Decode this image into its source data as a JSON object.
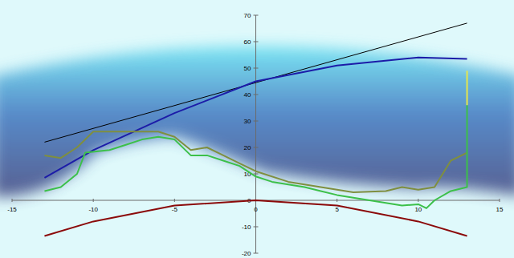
{
  "chart_data": {
    "type": "line",
    "xlim": [
      -15,
      15
    ],
    "ylim": [
      -20,
      70
    ],
    "xticks": [
      -15,
      -10,
      -5,
      0,
      5,
      10,
      15
    ],
    "yticks": [
      -20,
      -10,
      0,
      10,
      20,
      30,
      40,
      50,
      60,
      70
    ],
    "grid": false,
    "series": [
      {
        "color": "#000000",
        "x": [
          -13,
          13
        ],
        "values": [
          22,
          67
        ]
      },
      {
        "color": "#1c1ca8",
        "x": [
          -13,
          -10,
          -5,
          0,
          5,
          10,
          13
        ],
        "values": [
          8.5,
          19,
          33,
          45,
          51,
          54,
          53.5
        ]
      },
      {
        "color": "#8b0a0a",
        "x": [
          -13,
          -10,
          -5,
          0,
          5,
          10,
          13
        ],
        "values": [
          -13.5,
          -8,
          -2,
          0,
          -2,
          -8,
          -13.5
        ]
      },
      {
        "color": "#7f8f3f",
        "x": [
          -13,
          -12,
          -11,
          -10,
          -8,
          -6,
          -5,
          -4,
          -3,
          -2,
          -1,
          0,
          2,
          4,
          6,
          8,
          9,
          10,
          11,
          12,
          13
        ],
        "values": [
          17,
          16,
          20,
          26,
          26,
          26,
          24,
          19,
          20,
          17,
          14,
          11,
          7,
          5,
          3,
          3.5,
          5,
          4,
          5,
          15,
          18
        ]
      },
      {
        "color": "#3cc04a",
        "x": [
          -13,
          -12,
          -11,
          -10.5,
          -9,
          -8,
          -7,
          -6,
          -5,
          -4,
          -3,
          -2,
          -1,
          0,
          1,
          2,
          3,
          4,
          5,
          6,
          7,
          8,
          9,
          10,
          10.5,
          11,
          12,
          13,
          13
        ],
        "values": [
          3.5,
          5,
          10,
          18,
          19,
          21,
          23,
          24,
          23,
          17,
          17,
          15,
          13,
          9,
          7,
          6,
          5,
          3.5,
          2,
          1,
          0,
          -1,
          -2,
          -1.5,
          -3,
          0,
          3.5,
          5,
          36
        ]
      },
      {
        "color": "#e6e64a",
        "x": [
          13,
          13
        ],
        "values": [
          36,
          49
        ]
      }
    ]
  }
}
